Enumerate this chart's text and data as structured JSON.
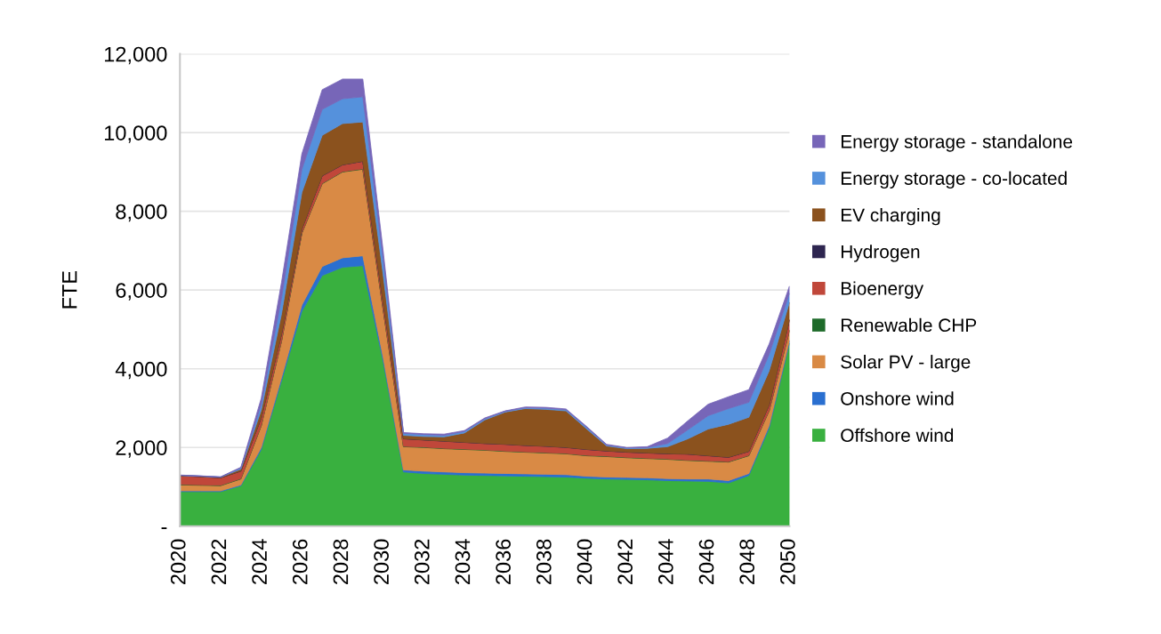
{
  "chart_data": {
    "type": "area",
    "stacked": true,
    "ylabel": "FTE",
    "x": [
      2020,
      2021,
      2022,
      2023,
      2024,
      2025,
      2026,
      2027,
      2028,
      2029,
      2030,
      2031,
      2032,
      2033,
      2034,
      2035,
      2036,
      2037,
      2038,
      2039,
      2040,
      2041,
      2042,
      2043,
      2044,
      2045,
      2046,
      2047,
      2048,
      2049,
      2050
    ],
    "xlim": [
      2020,
      2050
    ],
    "xticks": [
      2020,
      2022,
      2024,
      2026,
      2028,
      2030,
      2032,
      2034,
      2036,
      2038,
      2040,
      2042,
      2044,
      2046,
      2048,
      2050
    ],
    "ylim": [
      0,
      12000
    ],
    "yticks": [
      {
        "value": 0,
        "label": "-"
      },
      {
        "value": 2000,
        "label": "2,000"
      },
      {
        "value": 4000,
        "label": "4,000"
      },
      {
        "value": 6000,
        "label": "6,000"
      },
      {
        "value": 8000,
        "label": "8,000"
      },
      {
        "value": 10000,
        "label": "10,000"
      },
      {
        "value": 12000,
        "label": "12,000"
      }
    ],
    "grid": "y",
    "legend": "right",
    "series": [
      {
        "name": "Offshore wind",
        "color": "#39b03f",
        "values": [
          880,
          880,
          880,
          1030,
          1950,
          3700,
          5460,
          6370,
          6580,
          6620,
          4200,
          1380,
          1340,
          1320,
          1300,
          1290,
          1280,
          1270,
          1260,
          1250,
          1220,
          1200,
          1190,
          1180,
          1160,
          1150,
          1140,
          1100,
          1290,
          2500,
          4650
        ]
      },
      {
        "name": "Onshore wind",
        "color": "#2a6fd0",
        "values": [
          20,
          20,
          20,
          20,
          50,
          80,
          160,
          230,
          240,
          250,
          100,
          50,
          60,
          60,
          60,
          60,
          60,
          60,
          60,
          60,
          50,
          50,
          50,
          50,
          50,
          50,
          60,
          60,
          50,
          60,
          70
        ]
      },
      {
        "name": "Solar PV - large",
        "color": "#d98a45",
        "values": [
          150,
          140,
          130,
          150,
          550,
          920,
          1820,
          2100,
          2180,
          2200,
          1200,
          590,
          600,
          590,
          590,
          580,
          560,
          550,
          540,
          530,
          520,
          520,
          500,
          490,
          490,
          470,
          450,
          470,
          450,
          370,
          250
        ]
      },
      {
        "name": "Renewable CHP",
        "color": "#1e6b2a",
        "values": [
          10,
          10,
          10,
          10,
          10,
          10,
          10,
          10,
          10,
          10,
          10,
          10,
          10,
          10,
          10,
          10,
          10,
          10,
          10,
          10,
          10,
          10,
          10,
          10,
          10,
          10,
          10,
          10,
          10,
          10,
          10
        ]
      },
      {
        "name": "Bioenergy",
        "color": "#c0473a",
        "values": [
          220,
          210,
          190,
          190,
          190,
          170,
          100,
          190,
          170,
          190,
          190,
          190,
          180,
          180,
          170,
          160,
          170,
          160,
          160,
          150,
          150,
          130,
          130,
          130,
          130,
          150,
          130,
          110,
          100,
          140,
          260
        ]
      },
      {
        "name": "Hydrogen",
        "color": "#2e2650",
        "values": [
          5,
          5,
          5,
          5,
          5,
          5,
          5,
          5,
          5,
          5,
          5,
          5,
          5,
          5,
          5,
          5,
          5,
          5,
          5,
          5,
          5,
          5,
          5,
          5,
          5,
          5,
          5,
          5,
          5,
          5,
          5
        ]
      },
      {
        "name": "EV charging",
        "color": "#8b521e",
        "values": [
          5,
          5,
          10,
          45,
          195,
          515,
          925,
          1025,
          1045,
          995,
          695,
          85,
          85,
          105,
          235,
          595,
          815,
          935,
          935,
          925,
          525,
          125,
          85,
          115,
          175,
          385,
          675,
          835,
          865,
          865,
          445
        ]
      },
      {
        "name": "Energy storage - co-located",
        "color": "#5591dc",
        "values": [
          5,
          5,
          5,
          30,
          150,
          400,
          590,
          660,
          630,
          640,
          400,
          50,
          50,
          40,
          40,
          30,
          20,
          20,
          30,
          30,
          40,
          20,
          20,
          20,
          80,
          230,
          340,
          400,
          380,
          420,
          230
        ]
      },
      {
        "name": "Energy storage - standalone",
        "color": "#7766b8",
        "values": [
          5,
          5,
          5,
          20,
          150,
          400,
          390,
          500,
          500,
          450,
          200,
          20,
          20,
          30,
          20,
          20,
          10,
          20,
          20,
          20,
          20,
          20,
          10,
          20,
          140,
          230,
          290,
          300,
          320,
          260,
          180
        ]
      }
    ]
  }
}
